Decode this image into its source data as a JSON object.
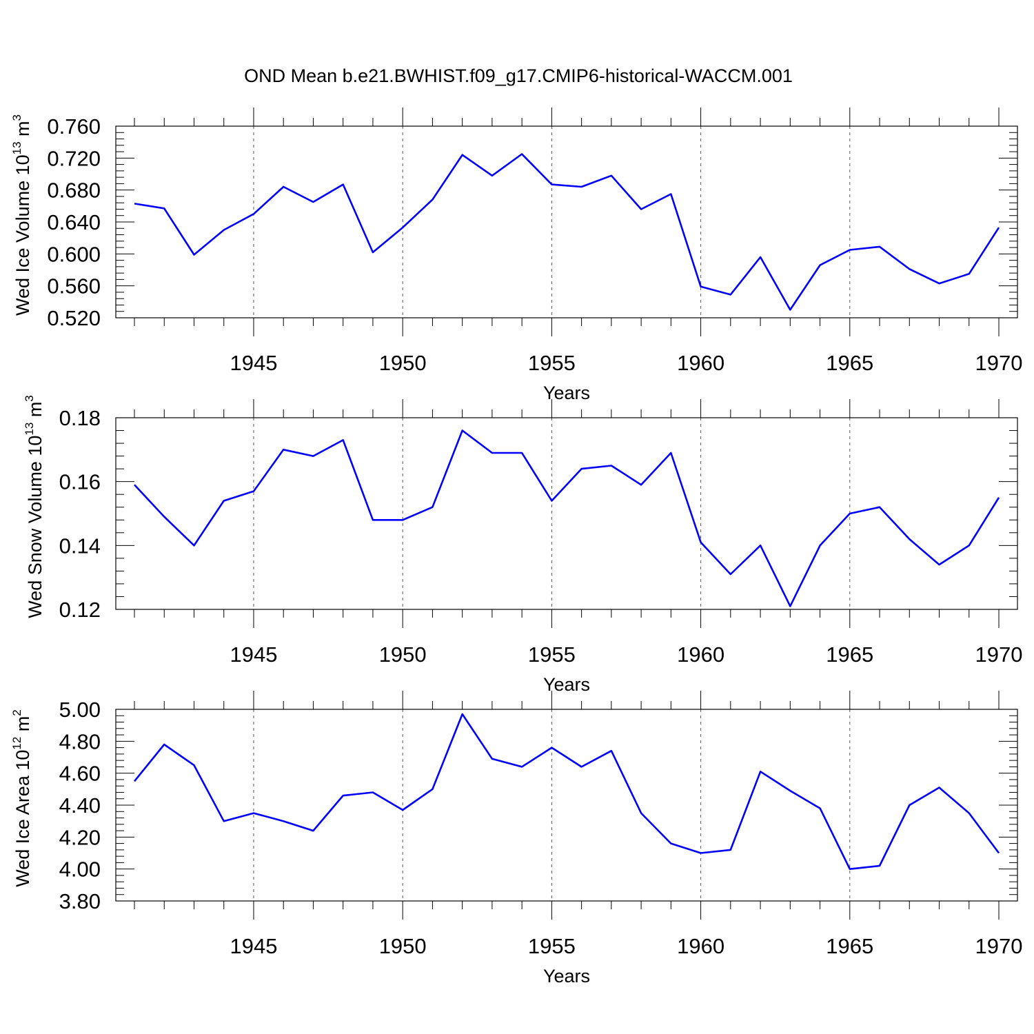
{
  "figure_title": "OND Mean b.e21.BWHIST.f09_g17.CMIP6-historical-WACCM.001",
  "colors": {
    "series": "#0000ff",
    "axis": "#000000",
    "grid": "#555555"
  },
  "chart_data": [
    {
      "type": "line",
      "title": "OND Mean b.e21.BWHIST.f09_g17.CMIP6-historical-WACCM.001",
      "ylabel": "Wed Ice Volume 10^13 m^3",
      "ylabel_parts": {
        "main": "Wed Ice Volume 10",
        "exp1": "13",
        "unit": " m",
        "exp2": "3"
      },
      "xlabel": "Years",
      "xlim": [
        1941,
        1970
      ],
      "ylim": [
        0.52,
        0.76
      ],
      "xticks": [
        1945,
        1950,
        1955,
        1960,
        1965,
        1970
      ],
      "xtick_labels": [
        "1945",
        "1950",
        "1955",
        "1960",
        "1965",
        "1970"
      ],
      "yticks": [
        0.52,
        0.56,
        0.6,
        0.64,
        0.68,
        0.72,
        0.76
      ],
      "ytick_labels": [
        "0.520",
        "0.560",
        "0.600",
        "0.640",
        "0.680",
        "0.720",
        "0.760"
      ],
      "grid": "vertical dashed at major x ticks",
      "series": [
        {
          "name": "Wed Ice Volume",
          "x": [
            1941,
            1942,
            1943,
            1944,
            1945,
            1946,
            1947,
            1948,
            1949,
            1950,
            1951,
            1952,
            1953,
            1954,
            1955,
            1956,
            1957,
            1958,
            1959,
            1960,
            1961,
            1962,
            1963,
            1964,
            1965,
            1966,
            1967,
            1968,
            1969,
            1970
          ],
          "values": [
            0.663,
            0.657,
            0.599,
            0.63,
            0.65,
            0.684,
            0.665,
            0.687,
            0.602,
            0.633,
            0.668,
            0.724,
            0.698,
            0.725,
            0.687,
            0.684,
            0.698,
            0.656,
            0.675,
            0.559,
            0.549,
            0.596,
            0.53,
            0.586,
            0.605,
            0.609,
            0.581,
            0.563,
            0.575,
            0.633
          ]
        }
      ]
    },
    {
      "type": "line",
      "ylabel": "Wed Snow Volume 10^13 m^3",
      "ylabel_parts": {
        "main": "Wed Snow Volume 10",
        "exp1": "13",
        "unit": " m",
        "exp2": "3"
      },
      "xlabel": "Years",
      "xlim": [
        1941,
        1970
      ],
      "ylim": [
        0.12,
        0.18
      ],
      "xticks": [
        1945,
        1950,
        1955,
        1960,
        1965,
        1970
      ],
      "xtick_labels": [
        "1945",
        "1950",
        "1955",
        "1960",
        "1965",
        "1970"
      ],
      "yticks": [
        0.12,
        0.14,
        0.16,
        0.18
      ],
      "ytick_labels": [
        "0.12",
        "0.14",
        "0.16",
        "0.18"
      ],
      "grid": "vertical dashed at major x ticks",
      "series": [
        {
          "name": "Wed Snow Volume",
          "x": [
            1941,
            1942,
            1943,
            1944,
            1945,
            1946,
            1947,
            1948,
            1949,
            1950,
            1951,
            1952,
            1953,
            1954,
            1955,
            1956,
            1957,
            1958,
            1959,
            1960,
            1961,
            1962,
            1963,
            1964,
            1965,
            1966,
            1967,
            1968,
            1969,
            1970
          ],
          "values": [
            0.159,
            0.149,
            0.14,
            0.154,
            0.157,
            0.17,
            0.168,
            0.173,
            0.148,
            0.148,
            0.152,
            0.176,
            0.169,
            0.169,
            0.154,
            0.164,
            0.165,
            0.159,
            0.169,
            0.141,
            0.131,
            0.14,
            0.121,
            0.14,
            0.15,
            0.152,
            0.142,
            0.134,
            0.14,
            0.155
          ]
        }
      ]
    },
    {
      "type": "line",
      "ylabel": "Wed Ice Area 10^12 m^2",
      "ylabel_parts": {
        "main": "Wed Ice Area 10",
        "exp1": "12",
        "unit": " m",
        "exp2": "2"
      },
      "xlabel": "Years",
      "xlim": [
        1941,
        1970
      ],
      "ylim": [
        3.8,
        5.0
      ],
      "xticks": [
        1945,
        1950,
        1955,
        1960,
        1965,
        1970
      ],
      "xtick_labels": [
        "1945",
        "1950",
        "1955",
        "1960",
        "1965",
        "1970"
      ],
      "yticks": [
        3.8,
        4.0,
        4.2,
        4.4,
        4.6,
        4.8,
        5.0
      ],
      "ytick_labels": [
        "3.80",
        "4.00",
        "4.20",
        "4.40",
        "4.60",
        "4.80",
        "5.00"
      ],
      "grid": "vertical dashed at major x ticks",
      "series": [
        {
          "name": "Wed Ice Area",
          "x": [
            1941,
            1942,
            1943,
            1944,
            1945,
            1946,
            1947,
            1948,
            1949,
            1950,
            1951,
            1952,
            1953,
            1954,
            1955,
            1956,
            1957,
            1958,
            1959,
            1960,
            1961,
            1962,
            1963,
            1964,
            1965,
            1966,
            1967,
            1968,
            1969,
            1970
          ],
          "values": [
            4.55,
            4.78,
            4.65,
            4.3,
            4.35,
            4.3,
            4.24,
            4.46,
            4.48,
            4.37,
            4.5,
            4.97,
            4.69,
            4.64,
            4.76,
            4.64,
            4.74,
            4.35,
            4.16,
            4.1,
            4.12,
            4.61,
            4.49,
            4.38,
            4.0,
            4.02,
            4.4,
            4.51,
            4.35,
            4.1
          ]
        }
      ]
    }
  ]
}
